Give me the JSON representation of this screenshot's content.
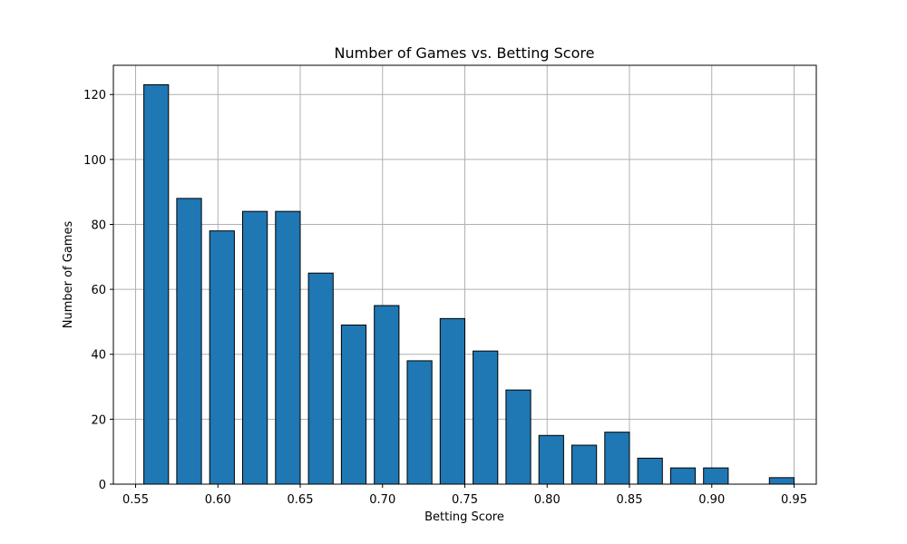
{
  "chart_data": {
    "type": "bar",
    "title": "Number of Games vs. Betting Score",
    "xlabel": "Betting Score",
    "ylabel": "Number of Games",
    "x_ticks": [
      "0.55",
      "0.60",
      "0.65",
      "0.70",
      "0.75",
      "0.80",
      "0.85",
      "0.90",
      "0.95"
    ],
    "y_ticks": [
      "0",
      "20",
      "40",
      "60",
      "80",
      "100",
      "120"
    ],
    "xlim": [
      0.5365,
      0.9635
    ],
    "ylim": [
      0,
      129
    ],
    "bar_width": 0.015,
    "x": [
      0.5625,
      0.5825,
      0.6025,
      0.6225,
      0.6425,
      0.6625,
      0.6825,
      0.7025,
      0.7225,
      0.7425,
      0.7625,
      0.7825,
      0.8025,
      0.8225,
      0.8425,
      0.8625,
      0.8825,
      0.9025,
      0.9225,
      0.9425
    ],
    "values": [
      123,
      88,
      78,
      84,
      84,
      65,
      49,
      55,
      38,
      51,
      41,
      29,
      15,
      12,
      16,
      8,
      5,
      5,
      0,
      2
    ],
    "bar_color": "#1f77b4",
    "edge_color": "#000000",
    "grid": true,
    "legend": "none"
  }
}
